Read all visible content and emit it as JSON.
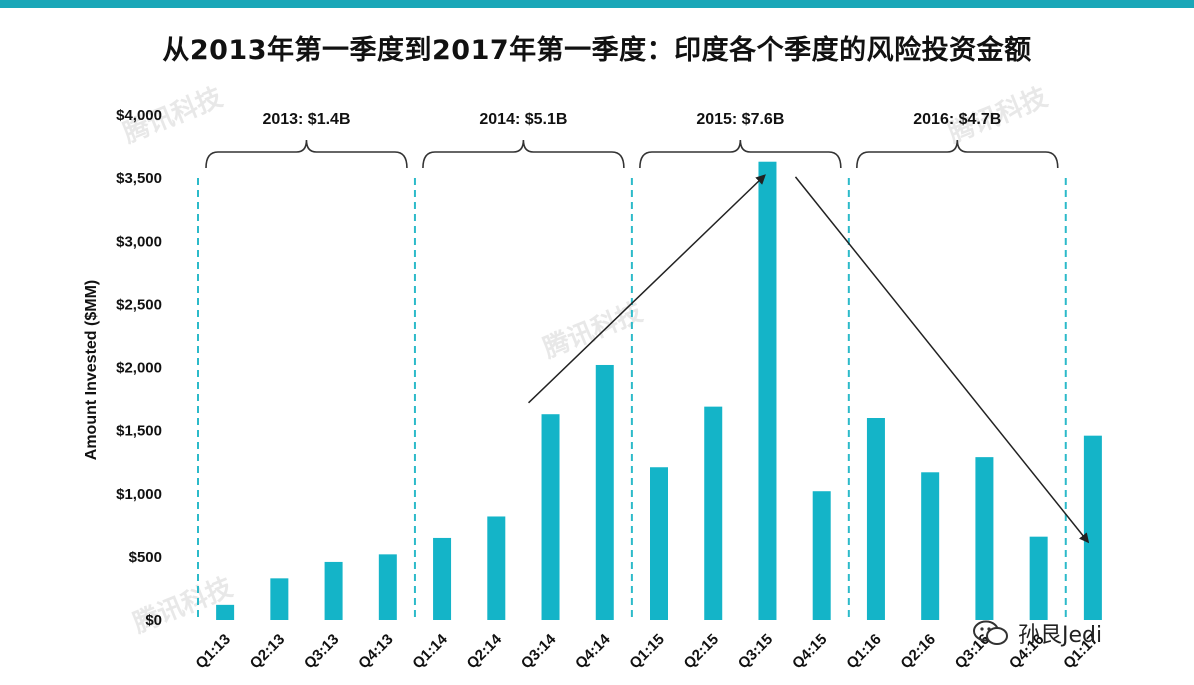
{
  "title": "从2013年第一季度到2017年第一季度：印度各个季度的风险投资金额",
  "watermark": "腾讯科技",
  "badge": {
    "name": "孙艮Jedi",
    "icon": "wechat-icon"
  },
  "colors": {
    "bar": "#14b4c8",
    "divider": "#2cbac9",
    "accent_bar": "#1aa7b8"
  },
  "chart_data": {
    "type": "bar",
    "title": "",
    "ylabel": "Amount Invested ($MM)",
    "xlabel": "",
    "ylim": [
      0,
      4000
    ],
    "yticks": [
      {
        "value": 0,
        "label": "$0"
      },
      {
        "value": 500,
        "label": "$500"
      },
      {
        "value": 1000,
        "label": "$1,000"
      },
      {
        "value": 1500,
        "label": "$1,500"
      },
      {
        "value": 2000,
        "label": "$2,000"
      },
      {
        "value": 2500,
        "label": "$2,500"
      },
      {
        "value": 3000,
        "label": "$3,000"
      },
      {
        "value": 3500,
        "label": "$3,500"
      },
      {
        "value": 4000,
        "label": "$4,000"
      }
    ],
    "categories": [
      "Q1:13",
      "Q2:13",
      "Q3:13",
      "Q4:13",
      "Q1:14",
      "Q2:14",
      "Q3:14",
      "Q4:14",
      "Q1:15",
      "Q2:15",
      "Q3:15",
      "Q4:15",
      "Q1:16",
      "Q2:16",
      "Q3:16",
      "Q4:16",
      "Q1:17"
    ],
    "values": [
      120,
      330,
      460,
      520,
      650,
      820,
      1630,
      2020,
      1210,
      1690,
      3630,
      1020,
      1600,
      1170,
      1290,
      660,
      1460
    ],
    "year_groups": [
      {
        "label": "2013: $1.4B",
        "start": 0,
        "end": 3
      },
      {
        "label": "2014: $5.1B",
        "start": 4,
        "end": 7
      },
      {
        "label": "2015: $7.6B",
        "start": 8,
        "end": 11
      },
      {
        "label": "2016: $4.7B",
        "start": 12,
        "end": 15
      }
    ],
    "trend_arrows": [
      {
        "from_category": 6,
        "from_value": 1720,
        "to_category": 10,
        "to_value": 3520
      },
      {
        "from_category": 10,
        "from_value": 3510,
        "to_category": 16,
        "to_value": 620
      }
    ],
    "grid": false,
    "legend": "none"
  }
}
